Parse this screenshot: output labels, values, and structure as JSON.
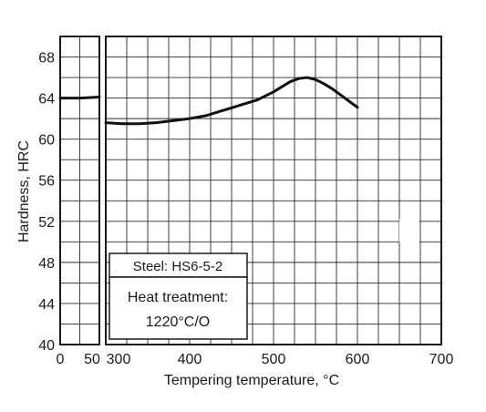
{
  "chart_data": {
    "type": "line",
    "xlabel": "Tempering temperature, °C",
    "ylabel": "Hardness, HRC",
    "ylim": [
      40,
      70
    ],
    "y_ticks": [
      40,
      44,
      48,
      52,
      56,
      60,
      64,
      68
    ],
    "grid": true,
    "panels": [
      {
        "id": "left",
        "xlim": [
          0,
          50
        ],
        "x_ticks": [
          0,
          50
        ],
        "x_tick_labels": [
          "0",
          "50"
        ],
        "series": [
          {
            "x": [
              0,
              25,
              50
            ],
            "y": [
              64.0,
              64.0,
              64.1
            ]
          }
        ]
      },
      {
        "id": "right",
        "xlim": [
          300,
          700
        ],
        "x_ticks": [
          300,
          400,
          500,
          600,
          700
        ],
        "x_tick_labels": [
          "300",
          "400",
          "500",
          "600",
          "700"
        ],
        "series": [
          {
            "x": [
              300,
              320,
              340,
              360,
              380,
              400,
              420,
              440,
              460,
              480,
              500,
              510,
              520,
              530,
              540,
              550,
              560,
              570,
              580,
              590,
              600
            ],
            "y": [
              61.6,
              61.5,
              61.5,
              61.6,
              61.8,
              62.0,
              62.3,
              62.8,
              63.3,
              63.8,
              64.6,
              65.1,
              65.6,
              65.9,
              66.0,
              65.8,
              65.4,
              64.9,
              64.3,
              63.7,
              63.1
            ]
          }
        ]
      }
    ],
    "annotations": {
      "steel_label": "Steel: HS6-5-2",
      "heat_treatment_line1": "Heat treatment:",
      "heat_treatment_line2": "1220°C/O"
    },
    "legend_placement": "bottom-left"
  }
}
